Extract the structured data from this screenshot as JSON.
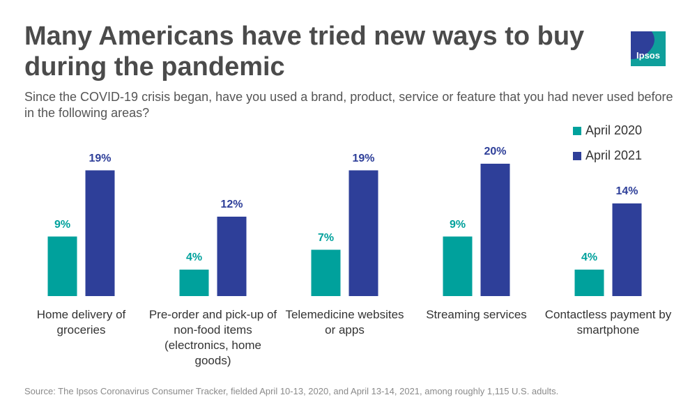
{
  "logo": "Ipsos",
  "chart_data": {
    "type": "bar",
    "title": "Many Americans have tried new ways to buy during the pandemic",
    "subtitle": "Since the COVID-19 crisis began, have you used a brand, product, service or feature that you had never used before in the following areas?",
    "categories": [
      "Home delivery of groceries",
      "Pre-order and pick-up of non-food items (electronics, home goods)",
      "Telemedicine websites or apps",
      "Streaming services",
      "Contactless payment by smartphone"
    ],
    "series": [
      {
        "name": "April 2020",
        "color": "#00a19c",
        "values": [
          9,
          4,
          7,
          9,
          4
        ],
        "value_labels": [
          "9%",
          "4%",
          "7%",
          "9%",
          "4%"
        ]
      },
      {
        "name": "April 2021",
        "color": "#2e3f99",
        "values": [
          19,
          12,
          19,
          20,
          14
        ],
        "value_labels": [
          "19%",
          "12%",
          "19%",
          "20%",
          "14%"
        ]
      }
    ],
    "legend": "top-right",
    "source": "Source: The Ipsos Coronavirus Consumer Tracker, fielded April 10-13, 2020, and April 13-14, 2021, among roughly 1,115 U.S. adults."
  }
}
